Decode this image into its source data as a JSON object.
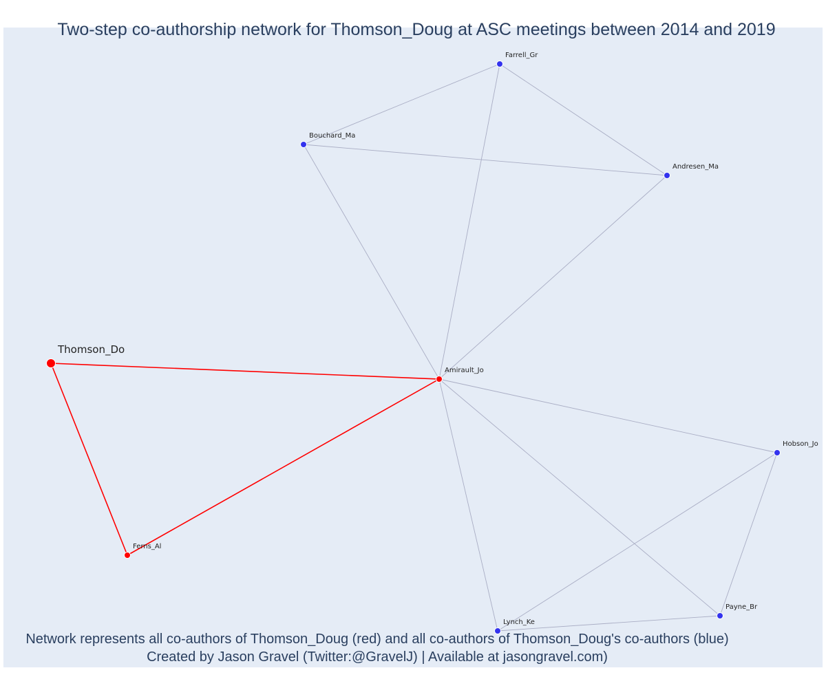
{
  "title": "Two-step co-authorship network for Thomson_Doug at ASC meetings between 2014 and 2019",
  "caption": {
    "line1": "Network represents all co-authors of Thomson_Doug (red) and all co-authors of Thomson_Doug's co-authors (blue)",
    "line2": "Created by Jason Gravel (Twitter:@GravelJ) | Available at jasongravel.com)"
  },
  "colors": {
    "plot_background": "#e5ecf6",
    "direct_coauthor": "#ff0000",
    "second_step_coauthor": "#3333ee",
    "direct_edge": "#ff0000",
    "other_edge": "#a9adc4",
    "text": "#2a3f5f"
  },
  "nodes": [
    {
      "id": "Thomson_Do",
      "label": "Thomson_Do",
      "group": "focal"
    },
    {
      "id": "Amirault_Jo",
      "label": "Amirault_Jo",
      "group": "direct"
    },
    {
      "id": "Ferns_Al",
      "label": "Ferns_Al",
      "group": "direct"
    },
    {
      "id": "Farrell_Gr",
      "label": "Farrell_Gr",
      "group": "second"
    },
    {
      "id": "Bouchard_Ma",
      "label": "Bouchard_Ma",
      "group": "second"
    },
    {
      "id": "Andresen_Ma",
      "label": "Andresen_Ma",
      "group": "second"
    },
    {
      "id": "Hobson_Jo",
      "label": "Hobson_Jo",
      "group": "second"
    },
    {
      "id": "Payne_Br",
      "label": "Payne_Br",
      "group": "second"
    },
    {
      "id": "Lynch_Ke",
      "label": "Lynch_Ke",
      "group": "second"
    }
  ],
  "edges": [
    {
      "source": "Thomson_Do",
      "target": "Amirault_Jo",
      "type": "direct"
    },
    {
      "source": "Thomson_Do",
      "target": "Ferns_Al",
      "type": "direct"
    },
    {
      "source": "Ferns_Al",
      "target": "Amirault_Jo",
      "type": "direct"
    },
    {
      "source": "Amirault_Jo",
      "target": "Farrell_Gr",
      "type": "other"
    },
    {
      "source": "Amirault_Jo",
      "target": "Bouchard_Ma",
      "type": "other"
    },
    {
      "source": "Amirault_Jo",
      "target": "Andresen_Ma",
      "type": "other"
    },
    {
      "source": "Amirault_Jo",
      "target": "Hobson_Jo",
      "type": "other"
    },
    {
      "source": "Amirault_Jo",
      "target": "Payne_Br",
      "type": "other"
    },
    {
      "source": "Amirault_Jo",
      "target": "Lynch_Ke",
      "type": "other"
    },
    {
      "source": "Farrell_Gr",
      "target": "Bouchard_Ma",
      "type": "other"
    },
    {
      "source": "Farrell_Gr",
      "target": "Andresen_Ma",
      "type": "other"
    },
    {
      "source": "Bouchard_Ma",
      "target": "Andresen_Ma",
      "type": "other"
    },
    {
      "source": "Hobson_Jo",
      "target": "Payne_Br",
      "type": "other"
    },
    {
      "source": "Hobson_Jo",
      "target": "Lynch_Ke",
      "type": "other"
    },
    {
      "source": "Payne_Br",
      "target": "Lynch_Ke",
      "type": "other"
    }
  ]
}
